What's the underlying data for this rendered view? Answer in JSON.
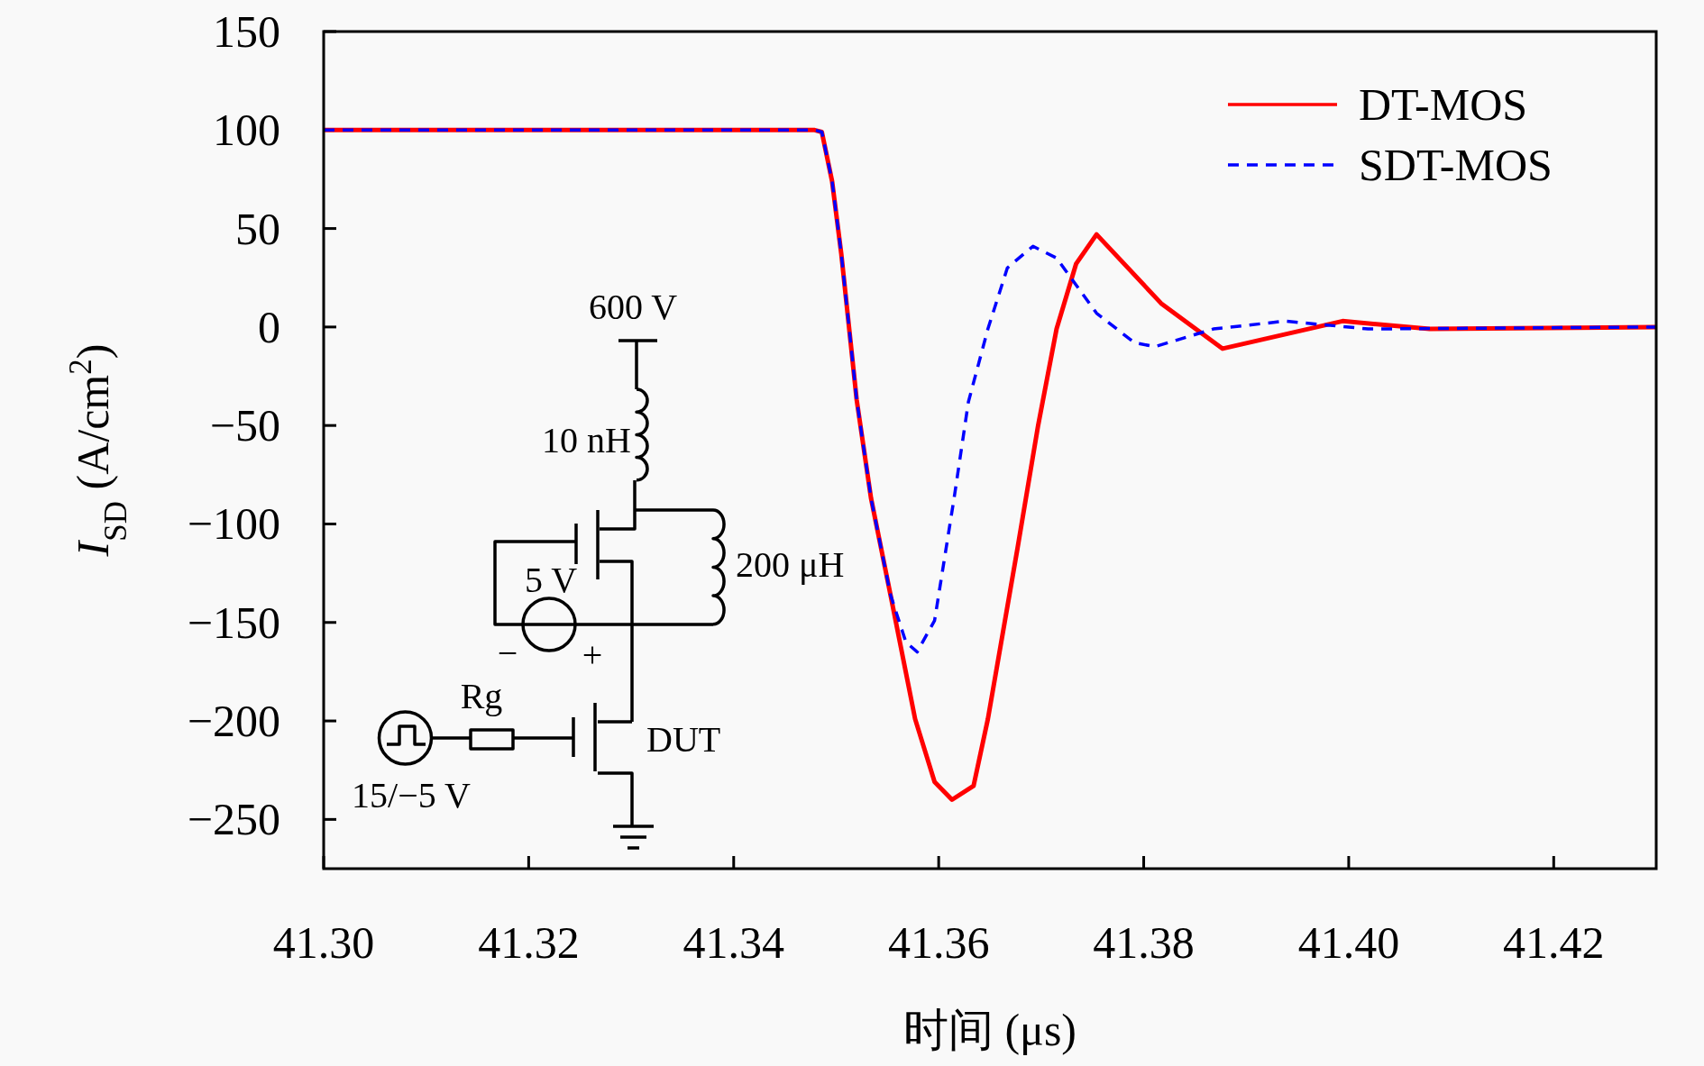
{
  "chart_data": {
    "type": "line",
    "xlabel": "时间 (μs)",
    "ylabel": "*I*$_{SD}$ (A/cm$^{2}$)",
    "xlim": [
      41.3,
      41.43
    ],
    "ylim": [
      -275,
      150
    ],
    "xticks": [
      {
        "value": 41.3,
        "label": "41.30"
      },
      41.32,
      41.34,
      41.36,
      41.38,
      {
        "value": 41.4,
        "label": "41.40"
      },
      41.42
    ],
    "yticks": [
      {
        "value": -250,
        "label": "−250"
      },
      {
        "value": -200,
        "label": "−200"
      },
      {
        "value": -150,
        "label": "−150"
      },
      {
        "value": -100,
        "label": "−100"
      },
      {
        "value": -50,
        "label": "−50"
      },
      0,
      50,
      100,
      150
    ],
    "legend": "top right",
    "series": [
      {
        "name": "DT-MOS",
        "color": "#ff0000",
        "line_style": "solid",
        "x": [
          41.3,
          41.3479,
          41.3486,
          41.3496,
          41.3505,
          41.352,
          41.3534,
          41.3553,
          41.3577,
          41.3596,
          41.3613,
          41.3634,
          41.3648,
          41.3677,
          41.3697,
          41.3715,
          41.3734,
          41.3754,
          41.3817,
          41.3877,
          41.3994,
          41.4079,
          41.43
        ],
        "values": [
          100,
          100,
          99,
          74,
          37,
          -37,
          -87,
          -136,
          -199,
          -231,
          -240,
          -233,
          -199,
          -112,
          -50,
          -1,
          32,
          47,
          12,
          -11,
          3,
          -1,
          0
        ]
      },
      {
        "name": "SDT-MOS",
        "color": "#0000ff",
        "line_style": "dashed",
        "x": [
          41.3,
          41.3479,
          41.3486,
          41.3496,
          41.3505,
          41.352,
          41.3534,
          41.3553,
          41.3568,
          41.3579,
          41.3596,
          41.3615,
          41.3629,
          41.3648,
          41.3667,
          41.3692,
          41.3715,
          41.3754,
          41.3791,
          41.3811,
          41.3868,
          41.3938,
          41.4019,
          41.43
        ],
        "values": [
          100,
          100,
          99,
          74,
          37,
          -37,
          -87,
          -136,
          -160,
          -165,
          -149,
          -87,
          -38,
          -1,
          30,
          41,
          35,
          7,
          -8,
          -10,
          -1,
          3,
          -1,
          0
        ]
      }
    ],
    "annotations": [
      "600 V",
      "10 nH",
      "200 μH",
      "5 V",
      "−",
      "+",
      "Rg",
      "DUT",
      "15/−5 V"
    ]
  }
}
